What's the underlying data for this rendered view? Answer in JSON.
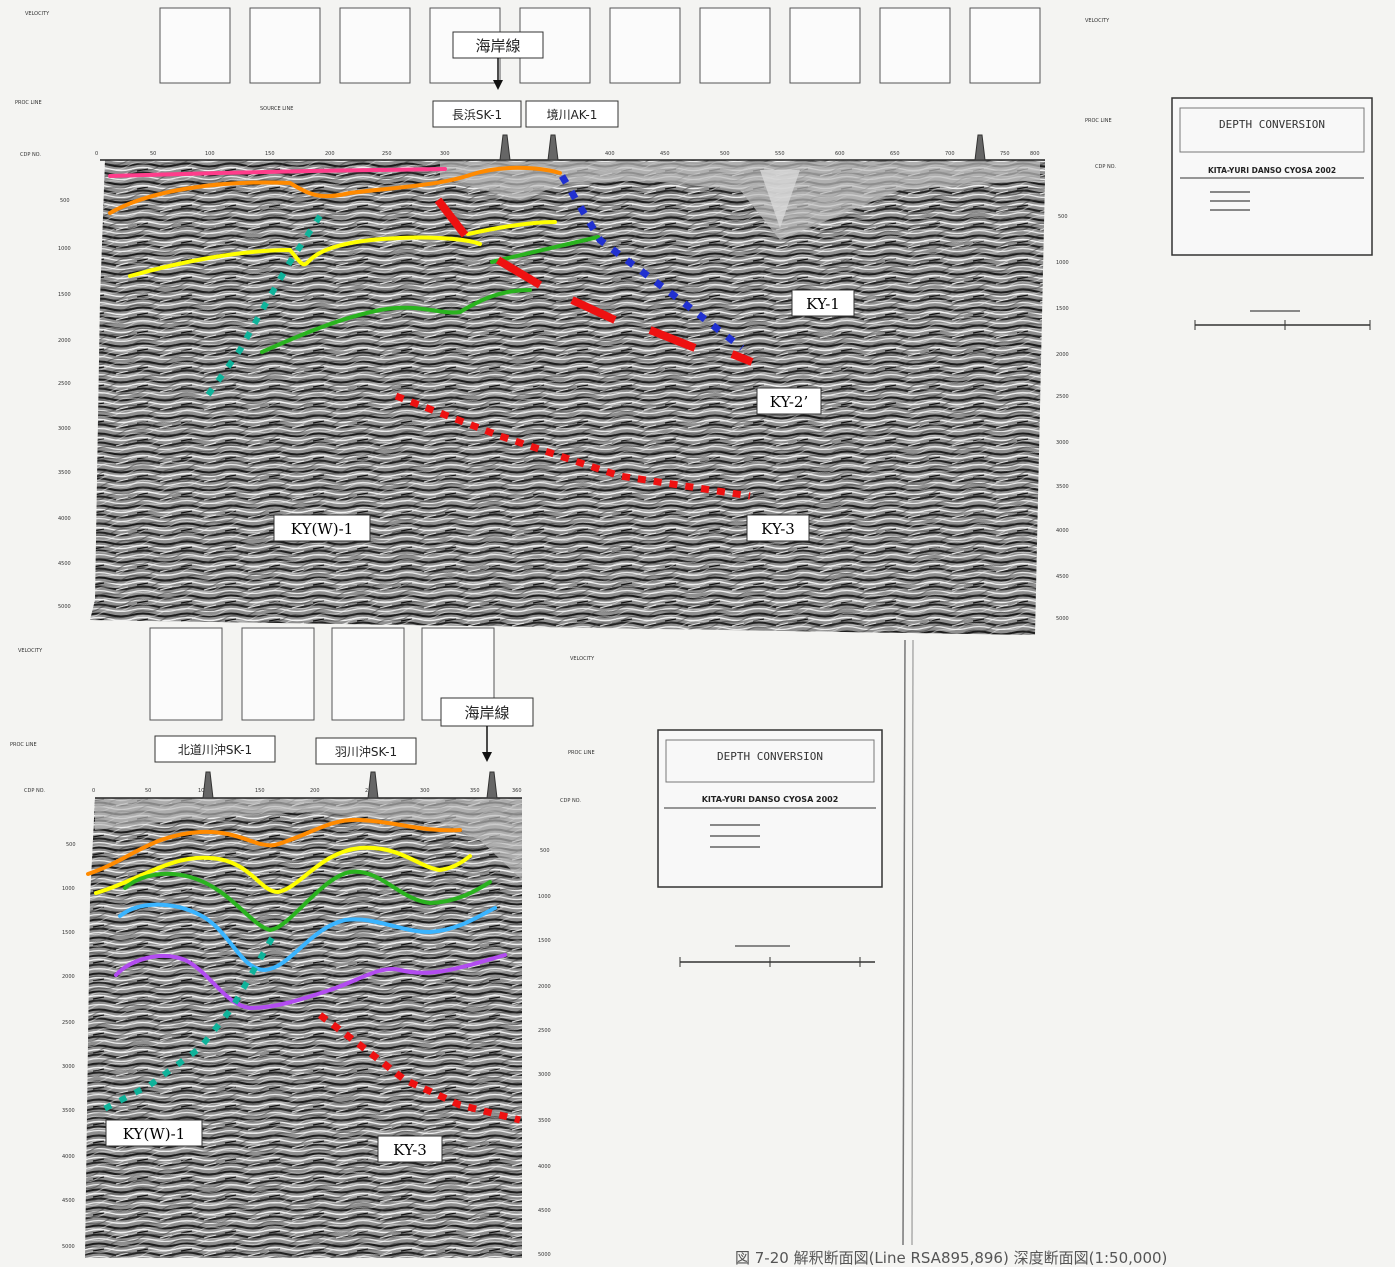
{
  "colors": {
    "pink": "#ff3d8b",
    "orange": "#ff8a00",
    "yellow": "#ffff00",
    "green": "#2ab31f",
    "cyan_teal": "#0fb39a",
    "blue_dotted": "#2030d0",
    "red": "#ee1111",
    "light_blue": "#3ab4ff",
    "purple": "#b24cf0"
  },
  "top_section": {
    "coastline_label": "海岸線",
    "well_1": "長浜SK-1",
    "well_2": "境川AK-1",
    "depth_conversion": {
      "title": "DEPTH CONVERSION",
      "project": "KITA-YURI DANSO CYOSA 2002"
    },
    "faults": {
      "ky1": "KY-1",
      "ky2": "KY-2’",
      "ky3": "KY-3",
      "kyw1": "KY(W)-1"
    }
  },
  "bottom_section": {
    "coastline_label": "海岸線",
    "well_1": "北道川沖SK-1",
    "well_2": "羽川沖SK-1",
    "depth_conversion": {
      "title": "DEPTH CONVERSION",
      "project": "KITA-YURI DANSO CYOSA 2002"
    },
    "faults": {
      "kyw1": "KY(W)-1",
      "ky3": "KY-3"
    }
  },
  "caption": "図 7-20   解釈断面図(Line RSA895,896) 深度断面図(1:50,000)"
}
